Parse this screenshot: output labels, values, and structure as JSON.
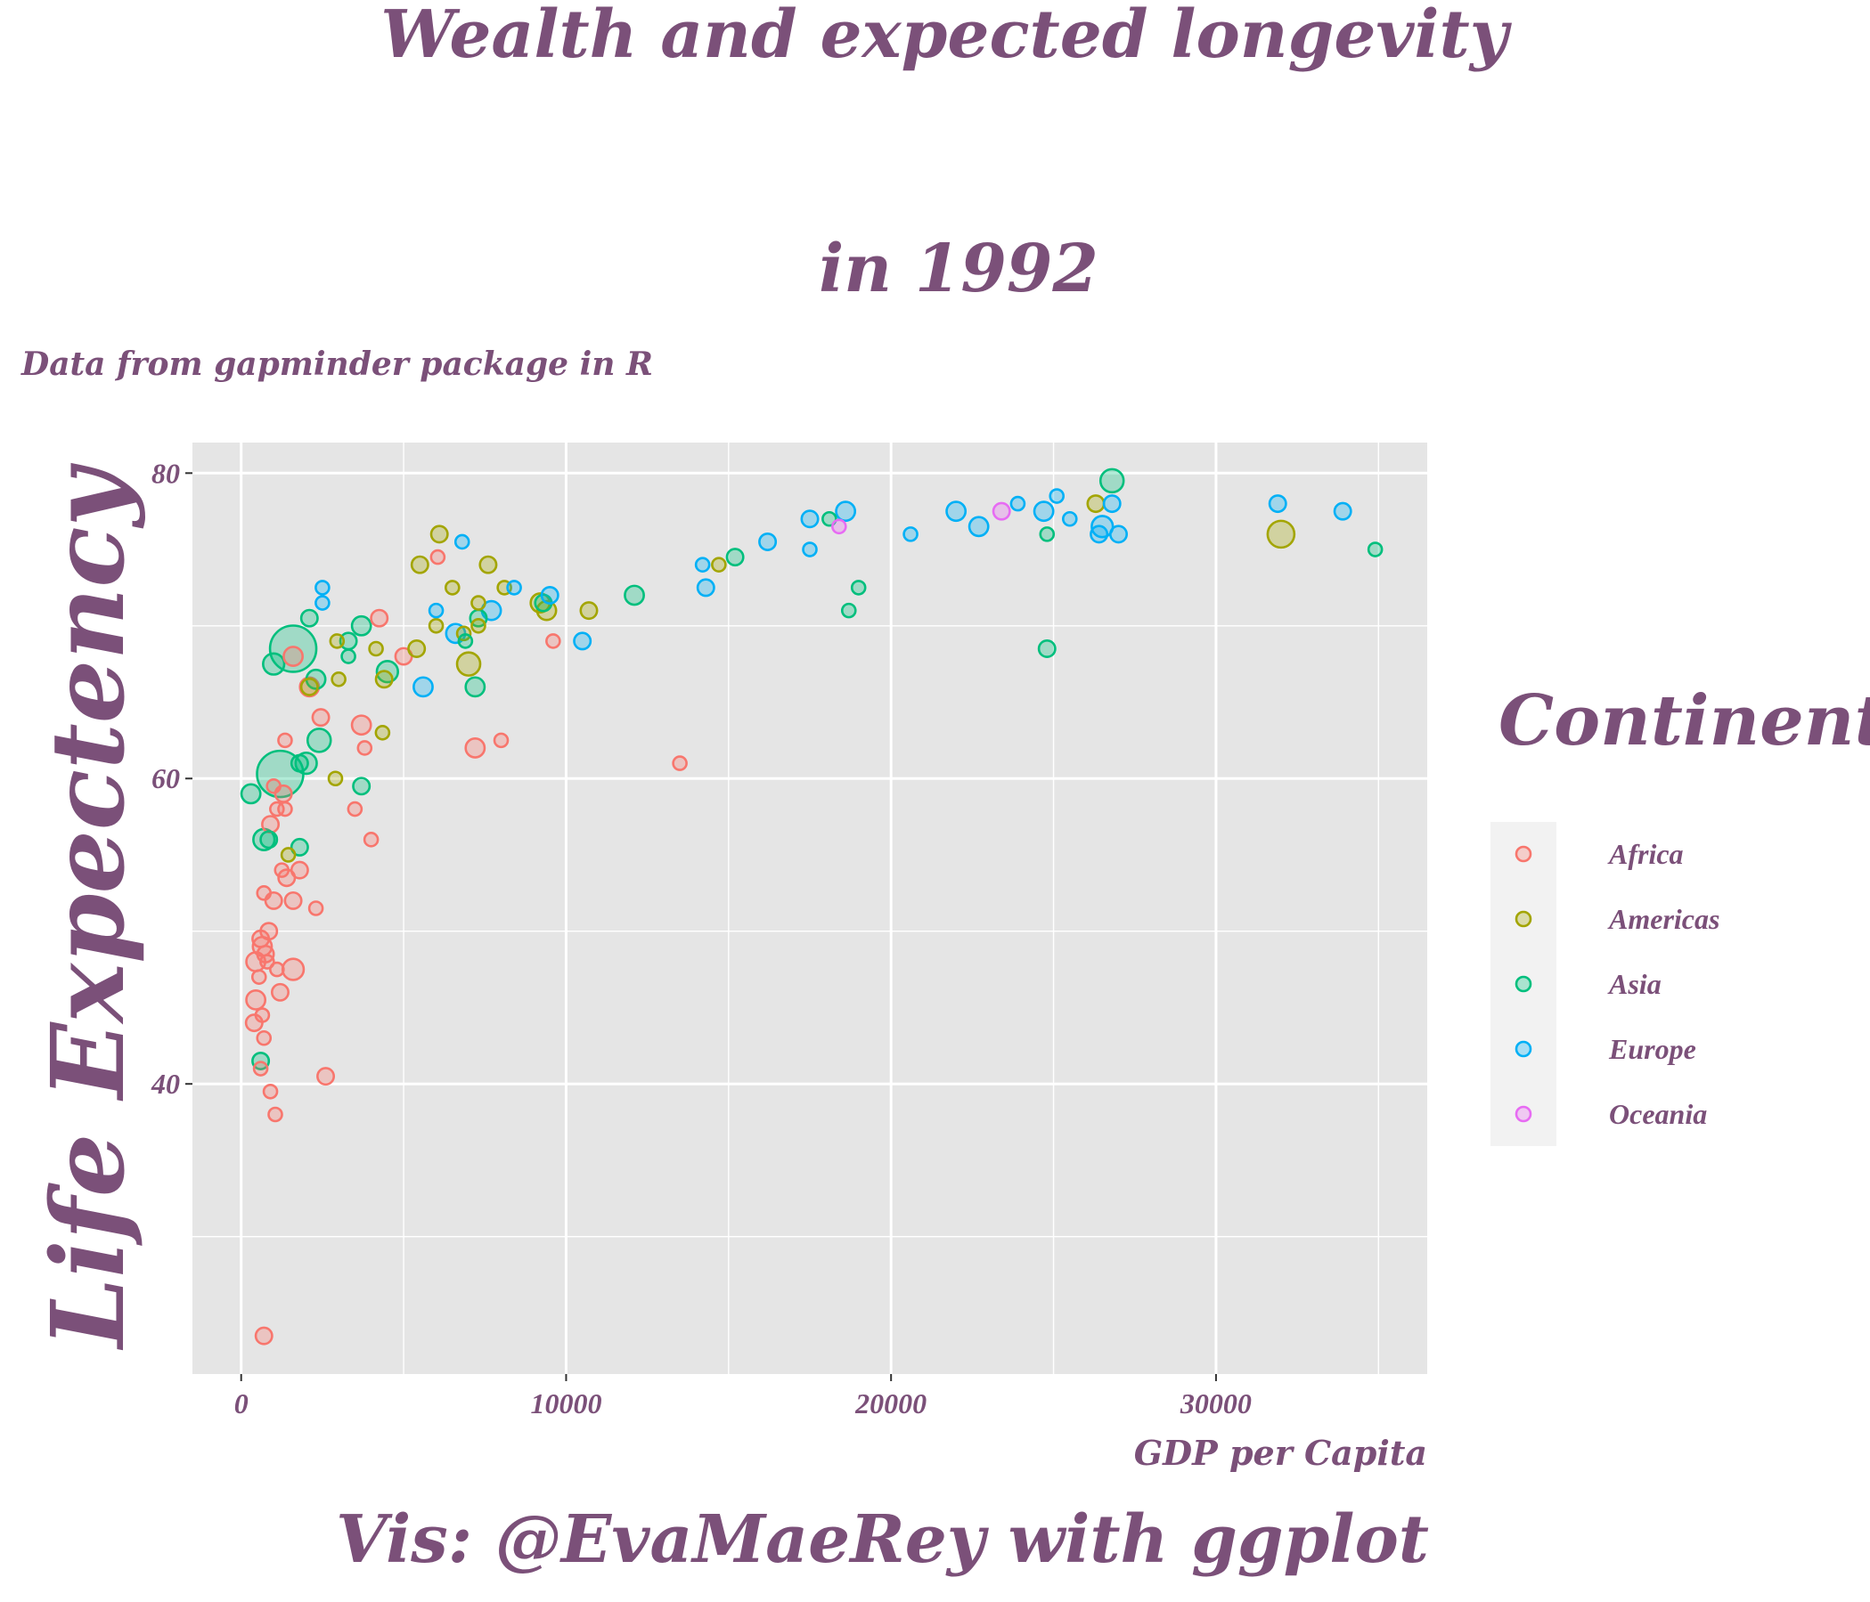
{
  "chart_data": {
    "type": "scatter",
    "title_lines": [
      "Wealth and expected longevity",
      "in 1992"
    ],
    "subtitle": "Data from gapminder package in R",
    "xlabel": "GDP per Capita",
    "ylabel": "Life Expectency",
    "caption": "Vis: @EvaMaeRey with ggplot",
    "xlim": [
      -1500,
      36500
    ],
    "ylim": [
      21,
      82
    ],
    "x_ticks": [
      0,
      10000,
      20000,
      30000
    ],
    "y_ticks": [
      40,
      60,
      80
    ],
    "grid": true,
    "legend": {
      "title": "Continent",
      "placement": "right",
      "entries": [
        {
          "name": "Africa",
          "color": "#F8766D"
        },
        {
          "name": "Americas",
          "color": "#A3A500"
        },
        {
          "name": "Asia",
          "color": "#00BF7D"
        },
        {
          "name": "Europe",
          "color": "#00B0F6"
        },
        {
          "name": "Oceania",
          "color": "#E76BF3"
        }
      ]
    },
    "series": [
      {
        "name": "Africa",
        "color": "#F8766D",
        "points": [
          [
            1600,
            68.0,
            2
          ],
          [
            2100,
            66.0,
            2
          ],
          [
            2450,
            64.0,
            1.5
          ],
          [
            4250,
            70.5,
            1.5
          ],
          [
            6050,
            74.5,
            1
          ],
          [
            3700,
            63.5,
            2
          ],
          [
            3800,
            62.0,
            1
          ],
          [
            4000,
            56.0,
            1
          ],
          [
            3500,
            58.0,
            1
          ],
          [
            7200,
            62.0,
            2
          ],
          [
            8000,
            62.5,
            1
          ],
          [
            9600,
            69.0,
            1
          ],
          [
            13500,
            61.0,
            1
          ],
          [
            1350,
            62.5,
            1
          ],
          [
            1300,
            59.0,
            1.5
          ],
          [
            1350,
            58.0,
            1
          ],
          [
            1100,
            58.0,
            1
          ],
          [
            900,
            57.0,
            1.5
          ],
          [
            1000,
            59.5,
            1
          ],
          [
            1250,
            54.0,
            1
          ],
          [
            1400,
            53.5,
            1.5
          ],
          [
            1800,
            54.0,
            1.5
          ],
          [
            1600,
            52.0,
            1.5
          ],
          [
            1000,
            52.0,
            1.5
          ],
          [
            700,
            52.5,
            1
          ],
          [
            2300,
            51.5,
            1
          ],
          [
            850,
            50.0,
            1.5
          ],
          [
            600,
            49.5,
            1.5
          ],
          [
            650,
            49.0,
            2
          ],
          [
            750,
            48.5,
            1.5
          ],
          [
            450,
            48.0,
            2
          ],
          [
            800,
            48.0,
            1
          ],
          [
            1100,
            47.5,
            1
          ],
          [
            1600,
            47.5,
            2.5
          ],
          [
            550,
            47.0,
            1
          ],
          [
            1200,
            46.0,
            1.5
          ],
          [
            450,
            45.5,
            2
          ],
          [
            650,
            44.5,
            1
          ],
          [
            400,
            44.0,
            1.5
          ],
          [
            700,
            43.0,
            1
          ],
          [
            600,
            41.0,
            1
          ],
          [
            2600,
            40.5,
            1.5
          ],
          [
            900,
            39.5,
            1
          ],
          [
            1050,
            38.0,
            1
          ],
          [
            700,
            23.5,
            1.5
          ],
          [
            5000,
            68.0,
            1.5
          ]
        ]
      },
      {
        "name": "Americas",
        "color": "#A3A500",
        "points": [
          [
            6100,
            76.0,
            1.5
          ],
          [
            5500,
            74.0,
            1.5
          ],
          [
            6500,
            72.5,
            1
          ],
          [
            7600,
            74.0,
            1.5
          ],
          [
            7300,
            71.5,
            1
          ],
          [
            8100,
            72.5,
            1
          ],
          [
            9200,
            71.5,
            2
          ],
          [
            9400,
            71.0,
            2
          ],
          [
            10700,
            71.0,
            1.5
          ],
          [
            2950,
            69.0,
            1
          ],
          [
            4150,
            68.5,
            1
          ],
          [
            5400,
            68.5,
            1.5
          ],
          [
            2100,
            66.0,
            1.5
          ],
          [
            3000,
            66.5,
            1
          ],
          [
            4400,
            66.5,
            1.5
          ],
          [
            4350,
            63.0,
            1
          ],
          [
            7000,
            67.5,
            3
          ],
          [
            6850,
            69.5,
            1
          ],
          [
            7300,
            70.0,
            1
          ],
          [
            2900,
            60.0,
            1
          ],
          [
            1450,
            55.0,
            1
          ],
          [
            14700,
            74.0,
            1
          ],
          [
            26300,
            78.0,
            1.5
          ],
          [
            32000,
            76.0,
            4
          ],
          [
            6000,
            70.0,
            1
          ]
        ]
      },
      {
        "name": "Asia",
        "color": "#00BF7D",
        "points": [
          [
            1600,
            68.5,
            12
          ],
          [
            1200,
            60.3,
            12
          ],
          [
            1000,
            67.5,
            2.5
          ],
          [
            2100,
            70.5,
            1.5
          ],
          [
            2300,
            66.5,
            2
          ],
          [
            3300,
            69.0,
            1.5
          ],
          [
            3700,
            70.0,
            2
          ],
          [
            3300,
            68.0,
            1
          ],
          [
            4500,
            67.0,
            2.5
          ],
          [
            2400,
            62.5,
            3
          ],
          [
            2000,
            61.0,
            2.5
          ],
          [
            3700,
            59.5,
            1.5
          ],
          [
            1800,
            61.0,
            1.5
          ],
          [
            300,
            59.0,
            2
          ],
          [
            700,
            56.0,
            2.5
          ],
          [
            850,
            56.0,
            1.5
          ],
          [
            1800,
            55.5,
            1.5
          ],
          [
            600,
            41.5,
            1.5
          ],
          [
            6900,
            69.0,
            1
          ],
          [
            7300,
            70.5,
            1.5
          ],
          [
            7200,
            66.0,
            2
          ],
          [
            9300,
            71.5,
            1.5
          ],
          [
            12100,
            72.0,
            2
          ],
          [
            15200,
            74.5,
            1.5
          ],
          [
            18100,
            77.0,
            1
          ],
          [
            18700,
            71.0,
            1
          ],
          [
            19000,
            72.5,
            1
          ],
          [
            24800,
            76.0,
            1
          ],
          [
            24800,
            68.5,
            1.5
          ],
          [
            26800,
            79.5,
            3
          ],
          [
            34900,
            75.0,
            1
          ]
        ]
      },
      {
        "name": "Europe",
        "color": "#00B0F6",
        "points": [
          [
            2500,
            71.5,
            1
          ],
          [
            2500,
            72.5,
            1
          ],
          [
            6800,
            75.5,
            1
          ],
          [
            6000,
            71.0,
            1
          ],
          [
            8400,
            72.5,
            1
          ],
          [
            9500,
            72.0,
            1.5
          ],
          [
            6600,
            69.5,
            2
          ],
          [
            7700,
            71.0,
            2
          ],
          [
            5600,
            66.0,
            2
          ],
          [
            10500,
            69.0,
            1.5
          ],
          [
            14200,
            74.0,
            1
          ],
          [
            14300,
            72.5,
            1.5
          ],
          [
            16200,
            75.5,
            1.5
          ],
          [
            17500,
            75.0,
            1
          ],
          [
            17500,
            77.0,
            1.5
          ],
          [
            18600,
            77.5,
            2
          ],
          [
            20600,
            76.0,
            1
          ],
          [
            22000,
            77.5,
            2
          ],
          [
            22700,
            76.5,
            2
          ],
          [
            23900,
            78.0,
            1
          ],
          [
            24700,
            77.5,
            2
          ],
          [
            25100,
            78.5,
            1
          ],
          [
            25500,
            77.0,
            1
          ],
          [
            26400,
            76.0,
            1.5
          ],
          [
            26500,
            76.5,
            2.5
          ],
          [
            26800,
            78.0,
            1.5
          ],
          [
            27000,
            76.0,
            1.5
          ],
          [
            31900,
            78.0,
            1.5
          ],
          [
            33900,
            77.5,
            1.5
          ]
        ]
      },
      {
        "name": "Oceania",
        "color": "#E76BF3",
        "points": [
          [
            18400,
            76.5,
            1
          ],
          [
            23400,
            77.5,
            1.5
          ]
        ]
      }
    ]
  }
}
